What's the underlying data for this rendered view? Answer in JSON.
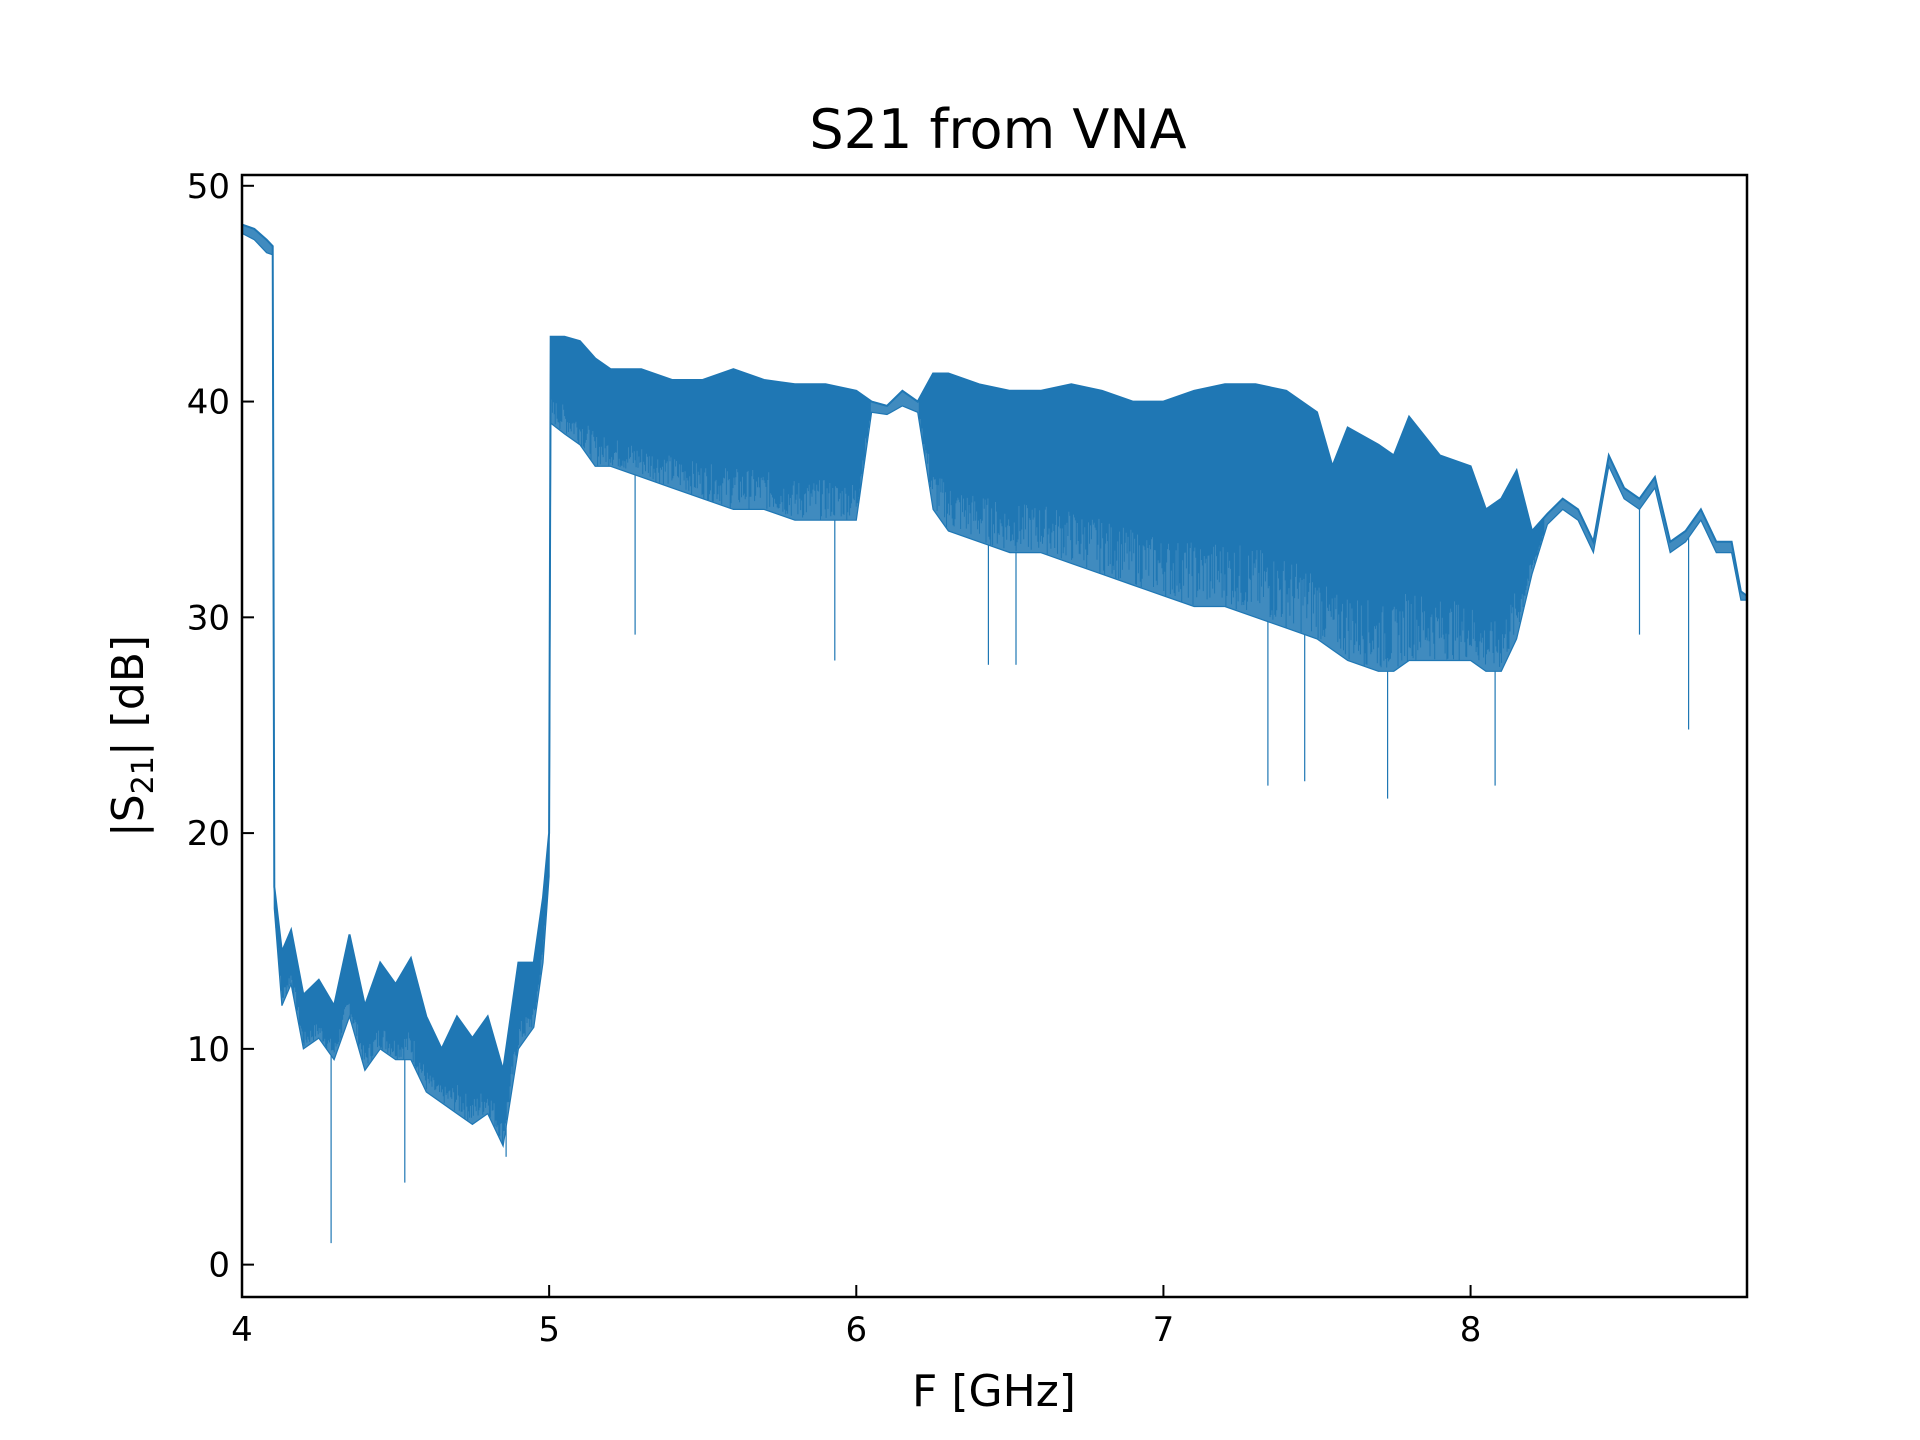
{
  "chart_data": {
    "type": "line",
    "title": "S21 from VNA",
    "xlabel": "F [GHz]",
    "ylabel_main": "|S",
    "ylabel_sub": "21",
    "ylabel_rest": "| [dB]",
    "xlim": [
      4.0,
      8.9
    ],
    "ylim": [
      -1.5,
      50.5
    ],
    "xticks": [
      4,
      5,
      6,
      7,
      8
    ],
    "yticks": [
      0,
      10,
      20,
      30,
      40,
      50
    ],
    "grid": false,
    "series": [
      {
        "color": "#1f77b4",
        "envelope": [
          [
            4.0,
            48.2,
            47.8
          ],
          [
            4.04,
            48.0,
            47.5
          ],
          [
            4.08,
            47.5,
            46.9
          ],
          [
            4.1,
            47.2,
            46.8
          ],
          [
            4.105,
            17.5,
            16.5
          ],
          [
            4.13,
            14.5,
            12.0
          ],
          [
            4.16,
            15.5,
            13.0
          ],
          [
            4.2,
            12.5,
            10.0
          ],
          [
            4.25,
            13.2,
            10.5
          ],
          [
            4.3,
            12.0,
            9.5
          ],
          [
            4.35,
            15.3,
            11.5
          ],
          [
            4.4,
            12.0,
            9.0
          ],
          [
            4.45,
            14.0,
            10.0
          ],
          [
            4.5,
            13.0,
            9.5
          ],
          [
            4.55,
            14.2,
            9.5
          ],
          [
            4.6,
            11.5,
            8.0
          ],
          [
            4.65,
            10.0,
            7.5
          ],
          [
            4.7,
            11.5,
            7.0
          ],
          [
            4.75,
            10.5,
            6.5
          ],
          [
            4.8,
            11.5,
            7.0
          ],
          [
            4.85,
            9.0,
            5.5
          ],
          [
            4.9,
            14.0,
            10.0
          ],
          [
            4.95,
            14.0,
            11.0
          ],
          [
            4.98,
            17.0,
            14.0
          ],
          [
            5.0,
            20.0,
            18.0
          ],
          [
            5.005,
            43.0,
            39.0
          ],
          [
            5.05,
            43.0,
            38.5
          ],
          [
            5.1,
            42.8,
            38.0
          ],
          [
            5.15,
            42.0,
            37.0
          ],
          [
            5.2,
            41.5,
            37.0
          ],
          [
            5.3,
            41.5,
            36.5
          ],
          [
            5.4,
            41.0,
            36.0
          ],
          [
            5.5,
            41.0,
            35.5
          ],
          [
            5.6,
            41.5,
            35.0
          ],
          [
            5.7,
            41.0,
            35.0
          ],
          [
            5.8,
            40.8,
            34.5
          ],
          [
            5.9,
            40.8,
            34.5
          ],
          [
            6.0,
            40.5,
            34.5
          ],
          [
            6.05,
            40.0,
            39.5
          ],
          [
            6.1,
            39.8,
            39.4
          ],
          [
            6.15,
            40.5,
            39.8
          ],
          [
            6.2,
            40.0,
            39.5
          ],
          [
            6.25,
            41.3,
            35.0
          ],
          [
            6.3,
            41.3,
            34.0
          ],
          [
            6.4,
            40.8,
            33.5
          ],
          [
            6.5,
            40.5,
            33.0
          ],
          [
            6.6,
            40.5,
            33.0
          ],
          [
            6.7,
            40.8,
            32.5
          ],
          [
            6.8,
            40.5,
            32.0
          ],
          [
            6.9,
            40.0,
            31.5
          ],
          [
            7.0,
            40.0,
            31.0
          ],
          [
            7.1,
            40.5,
            30.5
          ],
          [
            7.2,
            40.8,
            30.5
          ],
          [
            7.3,
            40.8,
            30.0
          ],
          [
            7.4,
            40.5,
            29.5
          ],
          [
            7.5,
            39.5,
            29.0
          ],
          [
            7.55,
            37.0,
            28.5
          ],
          [
            7.6,
            38.8,
            28.0
          ],
          [
            7.7,
            38.0,
            27.5
          ],
          [
            7.75,
            37.5,
            27.5
          ],
          [
            7.8,
            39.3,
            28.0
          ],
          [
            7.9,
            37.5,
            28.0
          ],
          [
            8.0,
            37.0,
            28.0
          ],
          [
            8.05,
            35.0,
            27.5
          ],
          [
            8.1,
            35.5,
            27.5
          ],
          [
            8.15,
            36.8,
            29.0
          ],
          [
            8.2,
            34.0,
            32.0
          ],
          [
            8.25,
            34.8,
            34.3
          ],
          [
            8.3,
            35.5,
            35.0
          ],
          [
            8.35,
            35.0,
            34.5
          ],
          [
            8.4,
            33.5,
            33.0
          ],
          [
            8.45,
            37.5,
            37.0
          ],
          [
            8.5,
            36.0,
            35.5
          ],
          [
            8.55,
            35.5,
            35.0
          ],
          [
            8.6,
            36.5,
            36.0
          ],
          [
            8.65,
            33.5,
            33.0
          ],
          [
            8.7,
            34.0,
            33.5
          ],
          [
            8.75,
            35.0,
            34.5
          ],
          [
            8.8,
            33.5,
            33.0
          ],
          [
            8.85,
            33.5,
            33.0
          ],
          [
            8.88,
            31.2,
            30.8
          ],
          [
            8.9,
            31.0,
            30.8
          ]
        ],
        "spikes": [
          [
            4.29,
            1.0
          ],
          [
            4.53,
            3.8
          ],
          [
            4.86,
            5.0
          ],
          [
            5.28,
            29.2
          ],
          [
            5.93,
            28.0
          ],
          [
            6.43,
            27.8
          ],
          [
            6.52,
            27.8
          ],
          [
            7.34,
            22.2
          ],
          [
            7.46,
            22.4
          ],
          [
            7.73,
            21.6
          ],
          [
            8.08,
            22.2
          ],
          [
            8.55,
            29.2
          ],
          [
            8.71,
            24.8
          ]
        ]
      }
    ]
  }
}
